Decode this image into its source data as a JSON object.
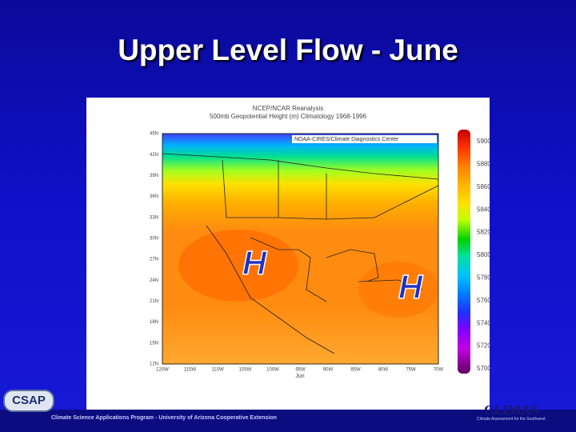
{
  "header": {
    "title": "Upper Level Flow - June"
  },
  "map": {
    "title_lines": [
      "NCEP/NCAR Reanalysis",
      "500mb Geopotential Height (m) Climatology 1968-1996"
    ],
    "credit": "NOAA-CIRES/Climate Diagnostics Center",
    "lat_labels": [
      "45N",
      "42N",
      "39N",
      "36N",
      "33N",
      "30N",
      "27N",
      "24N",
      "21N",
      "18N",
      "15N",
      "12N"
    ],
    "lon_labels": [
      "120W",
      "115W",
      "110W",
      "105W",
      "100W",
      "95W",
      "90W",
      "85W",
      "80W",
      "75W",
      "70W"
    ],
    "month": "Jun",
    "highs": [
      "H",
      "H"
    ],
    "colorbar_labels": [
      "5900",
      "5880",
      "5860",
      "5840",
      "5820",
      "5800",
      "5780",
      "5760",
      "5740",
      "5720",
      "5700"
    ]
  },
  "footer": {
    "logo": "CSAP",
    "text": "Climate Science Applications Program - University of Arizona Cooperative Extension",
    "brand": "CLIMAS",
    "brand_sub": "Climate Assessment for the Southwest"
  }
}
